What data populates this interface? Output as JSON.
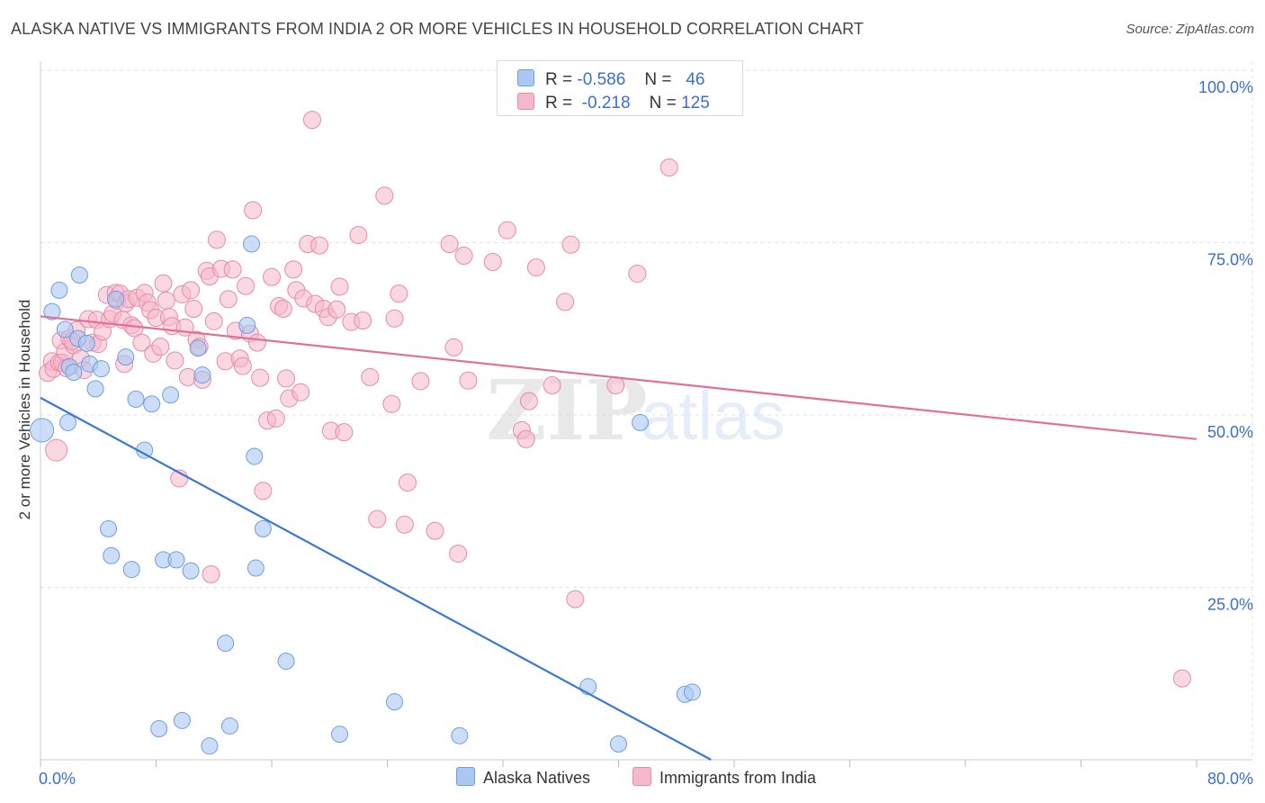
{
  "title": "ALASKA NATIVE VS IMMIGRANTS FROM INDIA 2 OR MORE VEHICLES IN HOUSEHOLD CORRELATION CHART",
  "source": "Source: ZipAtlas.com",
  "watermark": {
    "zip": "ZIP",
    "atlas": "atlas"
  },
  "legend": {
    "rows": [
      {
        "r_label": "R =",
        "r_value": "-0.586",
        "n_label": "N =",
        "n_value": "46"
      },
      {
        "r_label": "R =",
        "r_value": "-0.218",
        "n_label": "N =",
        "n_value": "125"
      }
    ]
  },
  "bottom_legend": [
    "Alaska Natives",
    "Immigrants from India"
  ],
  "colors": {
    "blue_fill": "#aac8f2",
    "blue_stroke": "#6e9de0",
    "blue_line": "#3a78d4",
    "pink_fill": "#f6b8cb",
    "pink_stroke": "#e88aa8",
    "pink_line": "#e0709a",
    "tick_label": "#3a6fcf"
  },
  "chart_data": {
    "type": "scatter",
    "title": "ALASKA NATIVE VS IMMIGRANTS FROM INDIA 2 OR MORE VEHICLES IN HOUSEHOLD CORRELATION CHART",
    "xlabel": "",
    "ylabel": "2 or more Vehicles in Household",
    "xlim": [
      0,
      80
    ],
    "ylim": [
      0,
      100
    ],
    "x_tick_labels": [
      "0.0%",
      "80.0%"
    ],
    "y_tick_labels": [
      "100.0%",
      "75.0%",
      "50.0%",
      "25.0%"
    ],
    "y_ticks": [
      100,
      75,
      50,
      25
    ],
    "grid": true,
    "legend_position": "top-center",
    "series": [
      {
        "name": "Alaska Natives",
        "color": "#aac8f2",
        "r": -0.586,
        "n": 46,
        "trend": {
          "x": [
            0,
            46.4
          ],
          "y": [
            52.5,
            0
          ]
        },
        "points": [
          [
            0.1,
            47.8
          ],
          [
            0.8,
            65
          ],
          [
            1.3,
            68.1
          ],
          [
            1.7,
            62.4
          ],
          [
            2,
            57
          ],
          [
            2.3,
            56.2
          ],
          [
            2.6,
            61.1
          ],
          [
            2.7,
            70.3
          ],
          [
            3.2,
            60.4
          ],
          [
            3.4,
            57.4
          ],
          [
            3.8,
            53.8
          ],
          [
            4.2,
            56.7
          ],
          [
            4.7,
            33.5
          ],
          [
            4.9,
            29.6
          ],
          [
            5.2,
            66.8
          ],
          [
            5.9,
            58.4
          ],
          [
            6.3,
            27.6
          ],
          [
            6.6,
            52.3
          ],
          [
            7.2,
            44.9
          ],
          [
            7.7,
            51.6
          ],
          [
            8.5,
            29
          ],
          [
            9,
            52.9
          ],
          [
            9.4,
            29
          ],
          [
            10.4,
            27.4
          ],
          [
            10.9,
            59.7
          ],
          [
            11.2,
            55.8
          ],
          [
            12.8,
            16.9
          ],
          [
            14.3,
            63
          ],
          [
            14.6,
            74.8
          ],
          [
            14.8,
            44
          ],
          [
            14.9,
            27.8
          ],
          [
            15.4,
            33.5
          ],
          [
            17,
            14.3
          ],
          [
            20.7,
            3.7
          ],
          [
            24.5,
            8.4
          ],
          [
            29,
            3.5
          ],
          [
            37.9,
            10.6
          ],
          [
            40,
            2.3
          ],
          [
            41.5,
            48.9
          ],
          [
            44.6,
            9.5
          ],
          [
            45.1,
            9.8
          ],
          [
            8.2,
            4.5
          ],
          [
            9.8,
            5.7
          ],
          [
            11.7,
            2
          ],
          [
            13.1,
            4.9
          ],
          [
            1.9,
            48.9
          ]
        ]
      },
      {
        "name": "Immigrants from India",
        "color": "#f6b8cb",
        "r": -0.218,
        "n": 125,
        "trend": {
          "x": [
            0,
            80
          ],
          "y": [
            64.3,
            46.5
          ]
        },
        "points": [
          [
            0.5,
            56.1
          ],
          [
            0.8,
            57.8
          ],
          [
            0.9,
            56.7
          ],
          [
            1.1,
            44.9
          ],
          [
            1.3,
            57.6
          ],
          [
            1.4,
            60.8
          ],
          [
            1.5,
            57.6
          ],
          [
            1.7,
            59.2
          ],
          [
            1.8,
            56.8
          ],
          [
            2,
            61.1
          ],
          [
            2.3,
            60.1
          ],
          [
            2.5,
            62.3
          ],
          [
            2.8,
            58.2
          ],
          [
            3,
            56.5
          ],
          [
            3.3,
            63.9
          ],
          [
            3.6,
            60.5
          ],
          [
            3.9,
            63.8
          ],
          [
            4,
            60.3
          ],
          [
            4.3,
            62.1
          ],
          [
            4.6,
            67.4
          ],
          [
            4.8,
            63.9
          ],
          [
            5,
            64.7
          ],
          [
            5.2,
            67.7
          ],
          [
            5.3,
            66.6
          ],
          [
            5.5,
            67.6
          ],
          [
            5.7,
            63.8
          ],
          [
            5.9,
            66.2
          ],
          [
            6.1,
            66.8
          ],
          [
            6.3,
            63
          ],
          [
            6.5,
            62.6
          ],
          [
            6.7,
            67
          ],
          [
            7,
            60.5
          ],
          [
            7.2,
            67.7
          ],
          [
            7.4,
            66.3
          ],
          [
            7.6,
            65.2
          ],
          [
            7.8,
            58.9
          ],
          [
            8,
            64.1
          ],
          [
            8.3,
            59.9
          ],
          [
            8.5,
            69.1
          ],
          [
            8.7,
            66.6
          ],
          [
            8.9,
            64.2
          ],
          [
            9.1,
            62.9
          ],
          [
            9.3,
            57.9
          ],
          [
            9.6,
            40.8
          ],
          [
            9.8,
            67.5
          ],
          [
            10,
            62.7
          ],
          [
            10.2,
            55.5
          ],
          [
            10.4,
            68.1
          ],
          [
            10.6,
            65.4
          ],
          [
            10.8,
            60.9
          ],
          [
            11,
            59.9
          ],
          [
            11.2,
            55.1
          ],
          [
            11.5,
            70.9
          ],
          [
            11.7,
            70.1
          ],
          [
            12,
            63.6
          ],
          [
            12.2,
            75.4
          ],
          [
            12.5,
            71.2
          ],
          [
            12.8,
            57.8
          ],
          [
            13,
            66.8
          ],
          [
            13.3,
            71.1
          ],
          [
            13.5,
            62.2
          ],
          [
            13.8,
            58.2
          ],
          [
            14,
            57.1
          ],
          [
            14.2,
            68.7
          ],
          [
            14.5,
            61.8
          ],
          [
            14.7,
            79.7
          ],
          [
            15,
            60.5
          ],
          [
            15.2,
            55.4
          ],
          [
            15.4,
            39
          ],
          [
            15.7,
            49.2
          ],
          [
            16,
            70
          ],
          [
            16.3,
            49.5
          ],
          [
            16.5,
            65.8
          ],
          [
            16.8,
            65.4
          ],
          [
            17,
            55.3
          ],
          [
            17.2,
            52.4
          ],
          [
            17.5,
            71.1
          ],
          [
            17.7,
            68.1
          ],
          [
            18,
            53.3
          ],
          [
            18.2,
            66.9
          ],
          [
            18.5,
            74.8
          ],
          [
            18.8,
            92.8
          ],
          [
            19,
            66.1
          ],
          [
            19.3,
            74.6
          ],
          [
            19.6,
            65.4
          ],
          [
            19.9,
            64.2
          ],
          [
            20.1,
            47.7
          ],
          [
            20.5,
            65.3
          ],
          [
            20.7,
            68.6
          ],
          [
            21,
            47.5
          ],
          [
            21.5,
            63.5
          ],
          [
            22,
            76.1
          ],
          [
            22.3,
            63.7
          ],
          [
            22.8,
            55.5
          ],
          [
            23.3,
            34.9
          ],
          [
            23.8,
            81.8
          ],
          [
            24.3,
            51.6
          ],
          [
            24.5,
            64
          ],
          [
            24.8,
            67.6
          ],
          [
            25.2,
            34.1
          ],
          [
            25.4,
            40.2
          ],
          [
            26.3,
            54.9
          ],
          [
            27.3,
            33.2
          ],
          [
            28.3,
            74.8
          ],
          [
            28.6,
            59.8
          ],
          [
            28.9,
            29.9
          ],
          [
            29.3,
            73.1
          ],
          [
            29.6,
            55
          ],
          [
            31.3,
            72.2
          ],
          [
            32.3,
            76.8
          ],
          [
            33.3,
            47.8
          ],
          [
            33.6,
            46.5
          ],
          [
            33.8,
            52
          ],
          [
            34.3,
            71.4
          ],
          [
            35.4,
            54.3
          ],
          [
            36.3,
            66.4
          ],
          [
            36.7,
            74.7
          ],
          [
            37,
            23.3
          ],
          [
            39.8,
            54.3
          ],
          [
            41.3,
            70.5
          ],
          [
            43.5,
            85.9
          ],
          [
            11.8,
            26.9
          ],
          [
            5.8,
            57.4
          ],
          [
            2.2,
            60.7
          ],
          [
            79,
            11.8
          ]
        ]
      }
    ]
  }
}
